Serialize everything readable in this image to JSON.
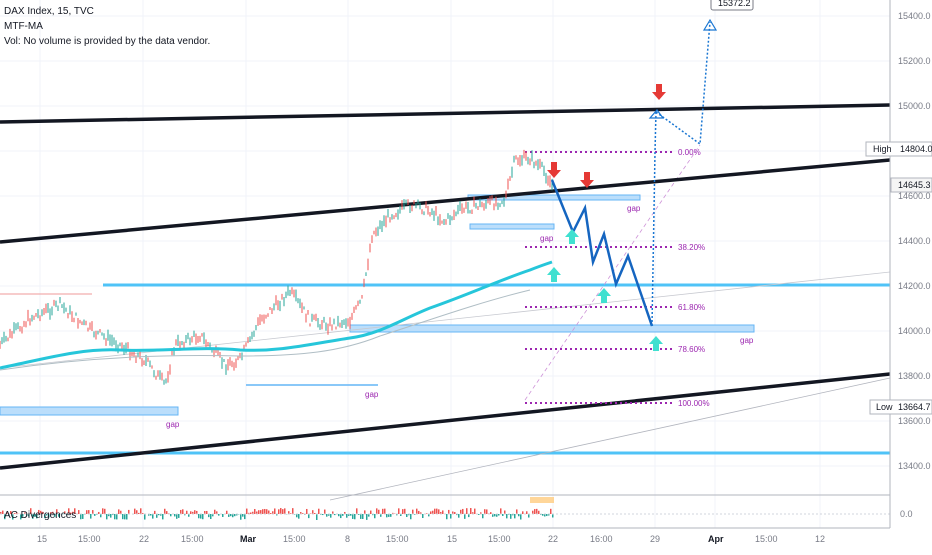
{
  "legend": {
    "title": "DAX Index, 15, TVC",
    "indicator": "MTF-MA",
    "volume_note": "Vol: No volume is provided by the data vendor."
  },
  "oscillator": {
    "label": "AC Divergences",
    "zero_label": "0.0"
  },
  "price_axis": {
    "ticks": [
      "15400.0",
      "15200.0",
      "15000.0",
      "14600.0",
      "14400.0",
      "14200.0",
      "14000.0",
      "13800.0",
      "13600.0",
      "13400.0"
    ],
    "high_label": "High",
    "high_value": "14804.0",
    "current_value": "14645.3",
    "low_label": "Low",
    "low_value": "13664.7",
    "target_value": "15372.2"
  },
  "time_axis": {
    "ticks": [
      "15",
      "15:00",
      "22",
      "15:00",
      "Mar",
      "15:00",
      "8",
      "15:00",
      "15",
      "15:00",
      "22",
      "16:00",
      "29",
      "Apr",
      "15:00",
      "12"
    ]
  },
  "fib_levels": [
    "0.00%",
    "38.20%",
    "61.80%",
    "78.60%",
    "100.00%"
  ],
  "gap_label": "gap",
  "colors": {
    "trendline": "#131722",
    "horizontal_level": "#4fc3f7",
    "moving_average": "#26c6da",
    "projection": "#1565c0",
    "fib": "#9c27b0",
    "gap_box": "#90caf9",
    "down_arrow": "#e53935",
    "up_arrow": "#40e0d0"
  }
}
